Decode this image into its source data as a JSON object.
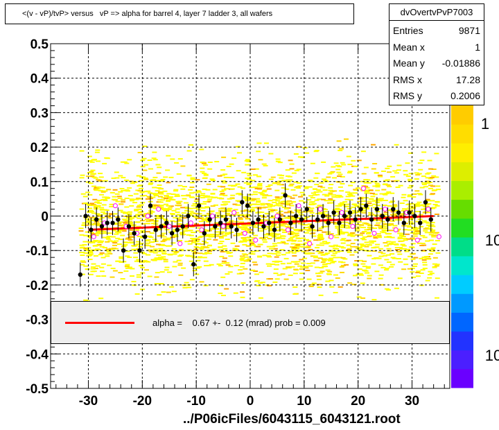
{
  "title": "<(v - vP)/tvP> versus   vP => alpha for barrel 4, layer 7 ladder 3, all wafers",
  "stats": {
    "name": "dvOvertvPvP7003",
    "rows": [
      {
        "label": "Entries",
        "value": "9871"
      },
      {
        "label": "Mean x",
        "value": "1"
      },
      {
        "label": "Mean y",
        "value": "-0.01886"
      },
      {
        "label": "RMS x",
        "value": "17.28"
      },
      {
        "label": "RMS y",
        "value": "0.2006"
      }
    ]
  },
  "fit": {
    "text": "alpha =    0.67 +-  0.12 (mrad) prob = 0.009",
    "line_color": "#ff0000"
  },
  "footer": "../P06icFiles/6043115_6043121.root",
  "colorbar": {
    "labels": [
      "1",
      "10",
      "10"
    ]
  },
  "chart_data": {
    "type": "scatter",
    "xlim": [
      -37,
      37
    ],
    "ylim": [
      -0.5,
      0.5
    ],
    "x_ticks": [
      -30,
      -20,
      -10,
      0,
      10,
      20,
      30
    ],
    "x_tick_labels": [
      "-30",
      "-20",
      "-10",
      "0",
      "10",
      "20",
      "30"
    ],
    "y_ticks": [
      -0.5,
      -0.4,
      -0.3,
      -0.2,
      -0.1,
      0,
      0.1,
      0.2,
      0.3,
      0.4,
      0.5
    ],
    "y_tick_labels": [
      "-0.5",
      "-0.4",
      "-0.3",
      "-0.2",
      "-0.1",
      "0",
      "0.1",
      "0.2",
      "0.3",
      "0.4",
      "0.5"
    ],
    "grid": true,
    "fit_line": {
      "x": [
        -30,
        34
      ],
      "y": [
        -0.04,
        0.0
      ]
    },
    "profile_points": {
      "x": [
        -31.5,
        -30.5,
        -29.5,
        -28.5,
        -27.5,
        -26.5,
        -25.5,
        -24.5,
        -23.5,
        -22.5,
        -21.5,
        -20.5,
        -19.5,
        -18.5,
        -17.5,
        -16.5,
        -15.5,
        -14.5,
        -13.5,
        -12.5,
        -11.5,
        -10.5,
        -9.5,
        -8.5,
        -7.5,
        -6.5,
        -5.5,
        -4.5,
        -3.5,
        -2.5,
        -1.5,
        -0.5,
        0.5,
        1.5,
        2.5,
        3.5,
        4.5,
        5.5,
        6.5,
        7.5,
        8.5,
        9.5,
        10.5,
        11.5,
        12.5,
        13.5,
        14.5,
        15.5,
        16.5,
        17.5,
        18.5,
        19.5,
        20.5,
        21.5,
        22.5,
        23.5,
        24.5,
        25.5,
        26.5,
        27.5,
        28.5,
        29.5,
        30.5,
        31.5,
        32.5,
        33.5
      ],
      "y": [
        -0.17,
        0.0,
        -0.04,
        -0.01,
        -0.03,
        -0.02,
        -0.02,
        -0.01,
        -0.1,
        -0.03,
        -0.05,
        -0.1,
        -0.06,
        0.03,
        -0.04,
        -0.03,
        -0.02,
        -0.05,
        -0.04,
        -0.03,
        0.0,
        -0.14,
        0.03,
        -0.05,
        -0.01,
        -0.03,
        -0.02,
        -0.01,
        -0.03,
        -0.04,
        0.04,
        0.03,
        -0.02,
        -0.01,
        -0.03,
        -0.02,
        -0.04,
        -0.01,
        0.06,
        -0.02,
        0.0,
        -0.01,
        0.02,
        -0.03,
        -0.01,
        0.0,
        -0.02,
        0.01,
        -0.02,
        0.0,
        0.01,
        -0.01,
        0.02,
        0.03,
        -0.01,
        0.02,
        0.0,
        -0.01,
        0.02,
        0.01,
        -0.02,
        0.01,
        0.0,
        -0.02,
        0.04,
        -0.01
      ],
      "yerr": 0.035
    },
    "open_points": {
      "x": [
        -29,
        -27,
        -25,
        -23,
        -21,
        -19,
        -17,
        -15,
        -13,
        -11,
        -9,
        -7,
        -5,
        -3,
        -1,
        1,
        3,
        5,
        7,
        9,
        11,
        13,
        15,
        17,
        19,
        21,
        23,
        25,
        27,
        29,
        31,
        33,
        35
      ],
      "y": [
        -0.06,
        -0.02,
        0.03,
        -0.03,
        -0.05,
        0.0,
        0.02,
        -0.03,
        -0.08,
        -0.02,
        -0.04,
        0.0,
        -0.03,
        0.01,
        -0.05,
        -0.07,
        -0.02,
        0.0,
        -0.04,
        0.03,
        -0.08,
        0.02,
        -0.06,
        0.01,
        -0.03,
        0.08,
        -0.05,
        0.02,
        -0.04,
        0.01,
        -0.07,
        0.02,
        -0.06
      ]
    }
  }
}
